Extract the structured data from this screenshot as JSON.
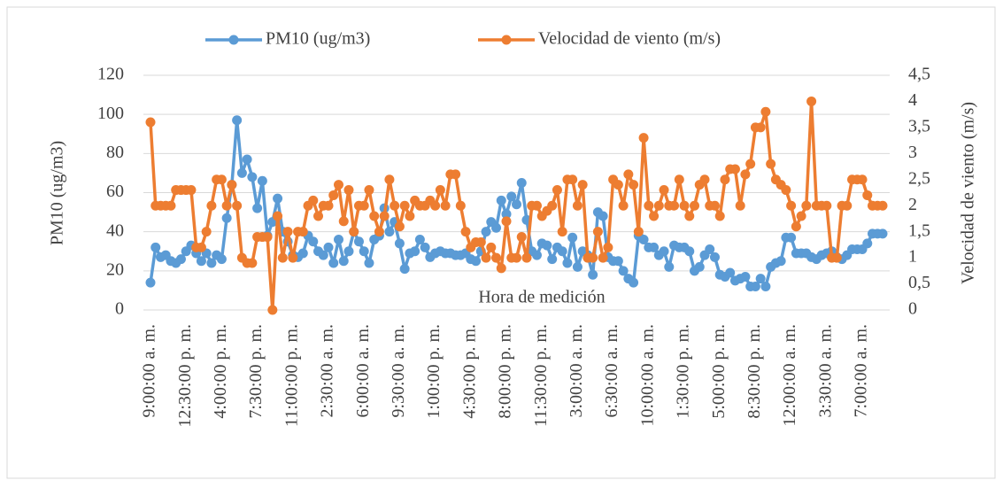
{
  "chart_data": {
    "type": "line",
    "annotation": "Hora de medición",
    "y_label": "PM10 (ug/m3)",
    "y2_label": "Velocidad de viento (m/s)",
    "categories": [
      "9:00:00 a. m.",
      null,
      null,
      null,
      null,
      null,
      null,
      "12:30:00 p. m.",
      null,
      null,
      null,
      null,
      null,
      null,
      "4:00:00 p. m.",
      null,
      null,
      null,
      null,
      null,
      null,
      "7:30:00 p. m.",
      null,
      null,
      null,
      null,
      null,
      null,
      "11:00:00 p. m.",
      null,
      null,
      null,
      null,
      null,
      null,
      "2:30:00 a. m.",
      null,
      null,
      null,
      null,
      null,
      null,
      "6:00:00 a. m.",
      null,
      null,
      null,
      null,
      null,
      null,
      "9:30:00 a. m.",
      null,
      null,
      null,
      null,
      null,
      null,
      "1:00:00 p. m.",
      null,
      null,
      null,
      null,
      null,
      null,
      "4:30:00 p. m.",
      null,
      null,
      null,
      null,
      null,
      null,
      "8:00:00 p. m.",
      null,
      null,
      null,
      null,
      null,
      null,
      "11:30:00 p. m.",
      null,
      null,
      null,
      null,
      null,
      null,
      "3:00:00 a. m.",
      null,
      null,
      null,
      null,
      null,
      null,
      "6:30:00 a. m.",
      null,
      null,
      null,
      null,
      null,
      null,
      "10:00:00 a. m.",
      null,
      null,
      null,
      null,
      null,
      null,
      "1:30:00 p. m.",
      null,
      null,
      null,
      null,
      null,
      null,
      "5:00:00 p. m.",
      null,
      null,
      null,
      null,
      null,
      null,
      "8:30:00 p. m.",
      null,
      null,
      null,
      null,
      null,
      null,
      "12:00:00 a. m.",
      null,
      null,
      null,
      null,
      null,
      null,
      "3:30:00 a. m.",
      null,
      null,
      null,
      null,
      null,
      null,
      "7:00:00 a. m.",
      null,
      null,
      null,
      null
    ],
    "series": [
      {
        "name": "PM10 (ug/m3)",
        "color": "#5b9bd5",
        "values": [
          14,
          32,
          27,
          28,
          25,
          24,
          26,
          30,
          33,
          29,
          25,
          29,
          24,
          28,
          26,
          47,
          64,
          97,
          70,
          77,
          68,
          52,
          66,
          38,
          45,
          57,
          40,
          35,
          28,
          27,
          29,
          38,
          35,
          30,
          28,
          32,
          24,
          36,
          25,
          30,
          40,
          35,
          30,
          24,
          36,
          38,
          52,
          40,
          45,
          34,
          21,
          29,
          30,
          36,
          32,
          27,
          29,
          30,
          29,
          29,
          28,
          28,
          29,
          26,
          25,
          30,
          40,
          45,
          42,
          56,
          49,
          58,
          54,
          65,
          46,
          30,
          28,
          34,
          33,
          26,
          32,
          30,
          24,
          37,
          22,
          30,
          28,
          18,
          50,
          48,
          27,
          25,
          25,
          20,
          16,
          14,
          38,
          36,
          32,
          32,
          28,
          30,
          22,
          33,
          32,
          32,
          30,
          20,
          22,
          28,
          31,
          27,
          18,
          17,
          19,
          15,
          16,
          17,
          12,
          12,
          16,
          12,
          22,
          24,
          25,
          37,
          37,
          29,
          29,
          29,
          27,
          26,
          28,
          29,
          30,
          27,
          26,
          28,
          31,
          31,
          31,
          34,
          39,
          39,
          39
        ]
      },
      {
        "name": "Velocidad de viento (m/s)",
        "color": "#ed7d31",
        "axis": "y2",
        "values": [
          3.6,
          2.0,
          2.0,
          2.0,
          2.0,
          2.3,
          2.3,
          2.3,
          2.3,
          1.2,
          1.2,
          1.5,
          2.0,
          2.5,
          2.5,
          2.0,
          2.4,
          2.0,
          1.0,
          0.9,
          0.9,
          1.4,
          1.4,
          1.4,
          0.0,
          1.8,
          1.0,
          1.5,
          1.0,
          1.5,
          1.5,
          2.0,
          2.1,
          1.8,
          2.0,
          2.0,
          2.2,
          2.4,
          1.7,
          2.3,
          1.5,
          2.0,
          2.0,
          2.3,
          1.8,
          1.5,
          1.8,
          2.5,
          2.0,
          1.6,
          2.0,
          1.8,
          2.1,
          2.0,
          2.0,
          2.1,
          2.0,
          2.3,
          2.0,
          2.6,
          2.6,
          2.0,
          1.5,
          1.2,
          1.3,
          1.3,
          1.0,
          1.2,
          1.0,
          0.8,
          1.7,
          1.0,
          1.0,
          1.4,
          1.0,
          2.0,
          2.0,
          1.8,
          1.9,
          2.0,
          2.3,
          1.5,
          2.5,
          2.5,
          2.0,
          2.4,
          1.0,
          1.0,
          1.5,
          1.0,
          1.2,
          2.5,
          2.4,
          2.0,
          2.6,
          2.4,
          1.5,
          3.3,
          2.0,
          1.8,
          2.0,
          2.3,
          2.0,
          2.0,
          2.5,
          2.0,
          1.8,
          2.0,
          2.4,
          2.5,
          2.0,
          2.0,
          1.8,
          2.5,
          2.7,
          2.7,
          2.0,
          2.6,
          2.8,
          3.5,
          3.5,
          3.8,
          2.8,
          2.5,
          2.4,
          2.3,
          2.0,
          1.6,
          1.8,
          2.0,
          4.0,
          2.0,
          2.0,
          2.0,
          1.0,
          1.0,
          2.0,
          2.0,
          2.5,
          2.5,
          2.5,
          2.2,
          2.0,
          2.0,
          2.0
        ]
      }
    ],
    "ylim": [
      0,
      120
    ],
    "yticks": [
      0,
      20,
      40,
      60,
      80,
      100,
      120
    ],
    "y2lim": [
      0,
      4.5
    ],
    "y2ticks": [
      0,
      {
        "value": 0.5,
        "label": "0,5"
      },
      1,
      {
        "value": 1.5,
        "label": "1,5"
      },
      2,
      {
        "value": 2.5,
        "label": "2,5"
      },
      3,
      {
        "value": 3.5,
        "label": "3,5"
      },
      4,
      {
        "value": 4.5,
        "label": "4,5"
      }
    ],
    "grid": true,
    "legend": "top"
  }
}
